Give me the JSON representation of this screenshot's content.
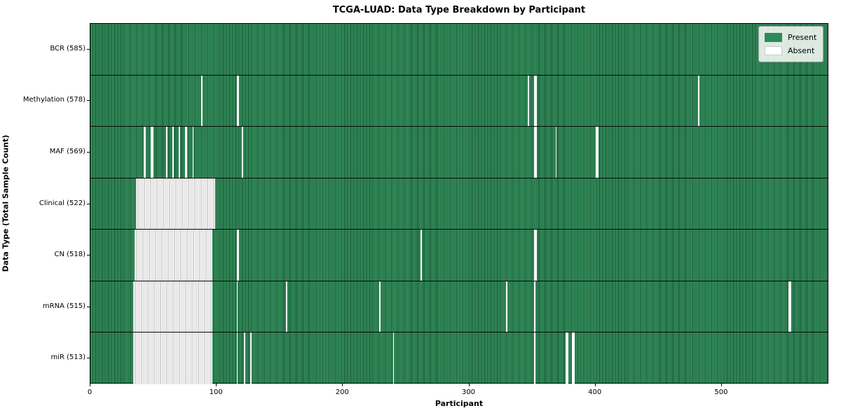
{
  "figure": {
    "title": "TCGA-LUAD: Data Type Breakdown by Participant"
  },
  "chart_data": {
    "type": "heatmap",
    "title": "TCGA-LUAD: Data Type Breakdown by Participant",
    "xlabel": "Participant",
    "ylabel": "Data Type (Total Sample Count)",
    "x_ticks": [
      0,
      100,
      200,
      300,
      400,
      500
    ],
    "xlim": [
      0,
      585
    ],
    "n_participants": 585,
    "grid": false,
    "legend": {
      "position": "upper right",
      "entries": [
        {
          "label": "Present",
          "color": "#2e8b57"
        },
        {
          "label": "Absent",
          "color": "#ffffff"
        }
      ]
    },
    "rows": [
      {
        "label": "BCR (585)",
        "data_type": "BCR",
        "total_samples": 585,
        "absent_ranges": []
      },
      {
        "label": "Methylation (578)",
        "data_type": "Methylation",
        "total_samples": 578,
        "absent_ranges": [
          [
            88,
            88
          ],
          [
            116,
            117
          ],
          [
            347,
            347
          ],
          [
            352,
            353
          ],
          [
            482,
            482
          ]
        ]
      },
      {
        "label": "MAF (569)",
        "data_type": "MAF",
        "total_samples": 569,
        "absent_ranges": [
          [
            42,
            43
          ],
          [
            48,
            49
          ],
          [
            60,
            60
          ],
          [
            65,
            65
          ],
          [
            70,
            70
          ],
          [
            75,
            76
          ],
          [
            81,
            81
          ],
          [
            120,
            120
          ],
          [
            352,
            353
          ],
          [
            369,
            369
          ],
          [
            401,
            402
          ]
        ]
      },
      {
        "label": "Clinical (522)",
        "data_type": "Clinical",
        "total_samples": 522,
        "absent_ranges": [
          [
            36,
            98
          ]
        ]
      },
      {
        "label": "CN (518)",
        "data_type": "CN",
        "total_samples": 518,
        "absent_ranges": [
          [
            35,
            96
          ],
          [
            116,
            117
          ],
          [
            262,
            262
          ],
          [
            352,
            353
          ]
        ]
      },
      {
        "label": "mRNA (515)",
        "data_type": "mRNA",
        "total_samples": 515,
        "absent_ranges": [
          [
            34,
            96
          ],
          [
            116,
            116
          ],
          [
            155,
            155
          ],
          [
            229,
            229
          ],
          [
            330,
            330
          ],
          [
            352,
            352
          ],
          [
            554,
            555
          ]
        ]
      },
      {
        "label": "miR (513)",
        "data_type": "miR",
        "total_samples": 513,
        "absent_ranges": [
          [
            34,
            96
          ],
          [
            116,
            116
          ],
          [
            122,
            122
          ],
          [
            127,
            127
          ],
          [
            240,
            240
          ],
          [
            352,
            352
          ],
          [
            377,
            378
          ],
          [
            382,
            383
          ]
        ]
      }
    ],
    "colors": {
      "present_fill": "#2e8b57",
      "present_edge": "#174d30",
      "absent_fill": "#ffffff",
      "absent_edge": "#a8a8a8",
      "row_separator": "#0a0a0a",
      "background": "#ffffff"
    }
  }
}
